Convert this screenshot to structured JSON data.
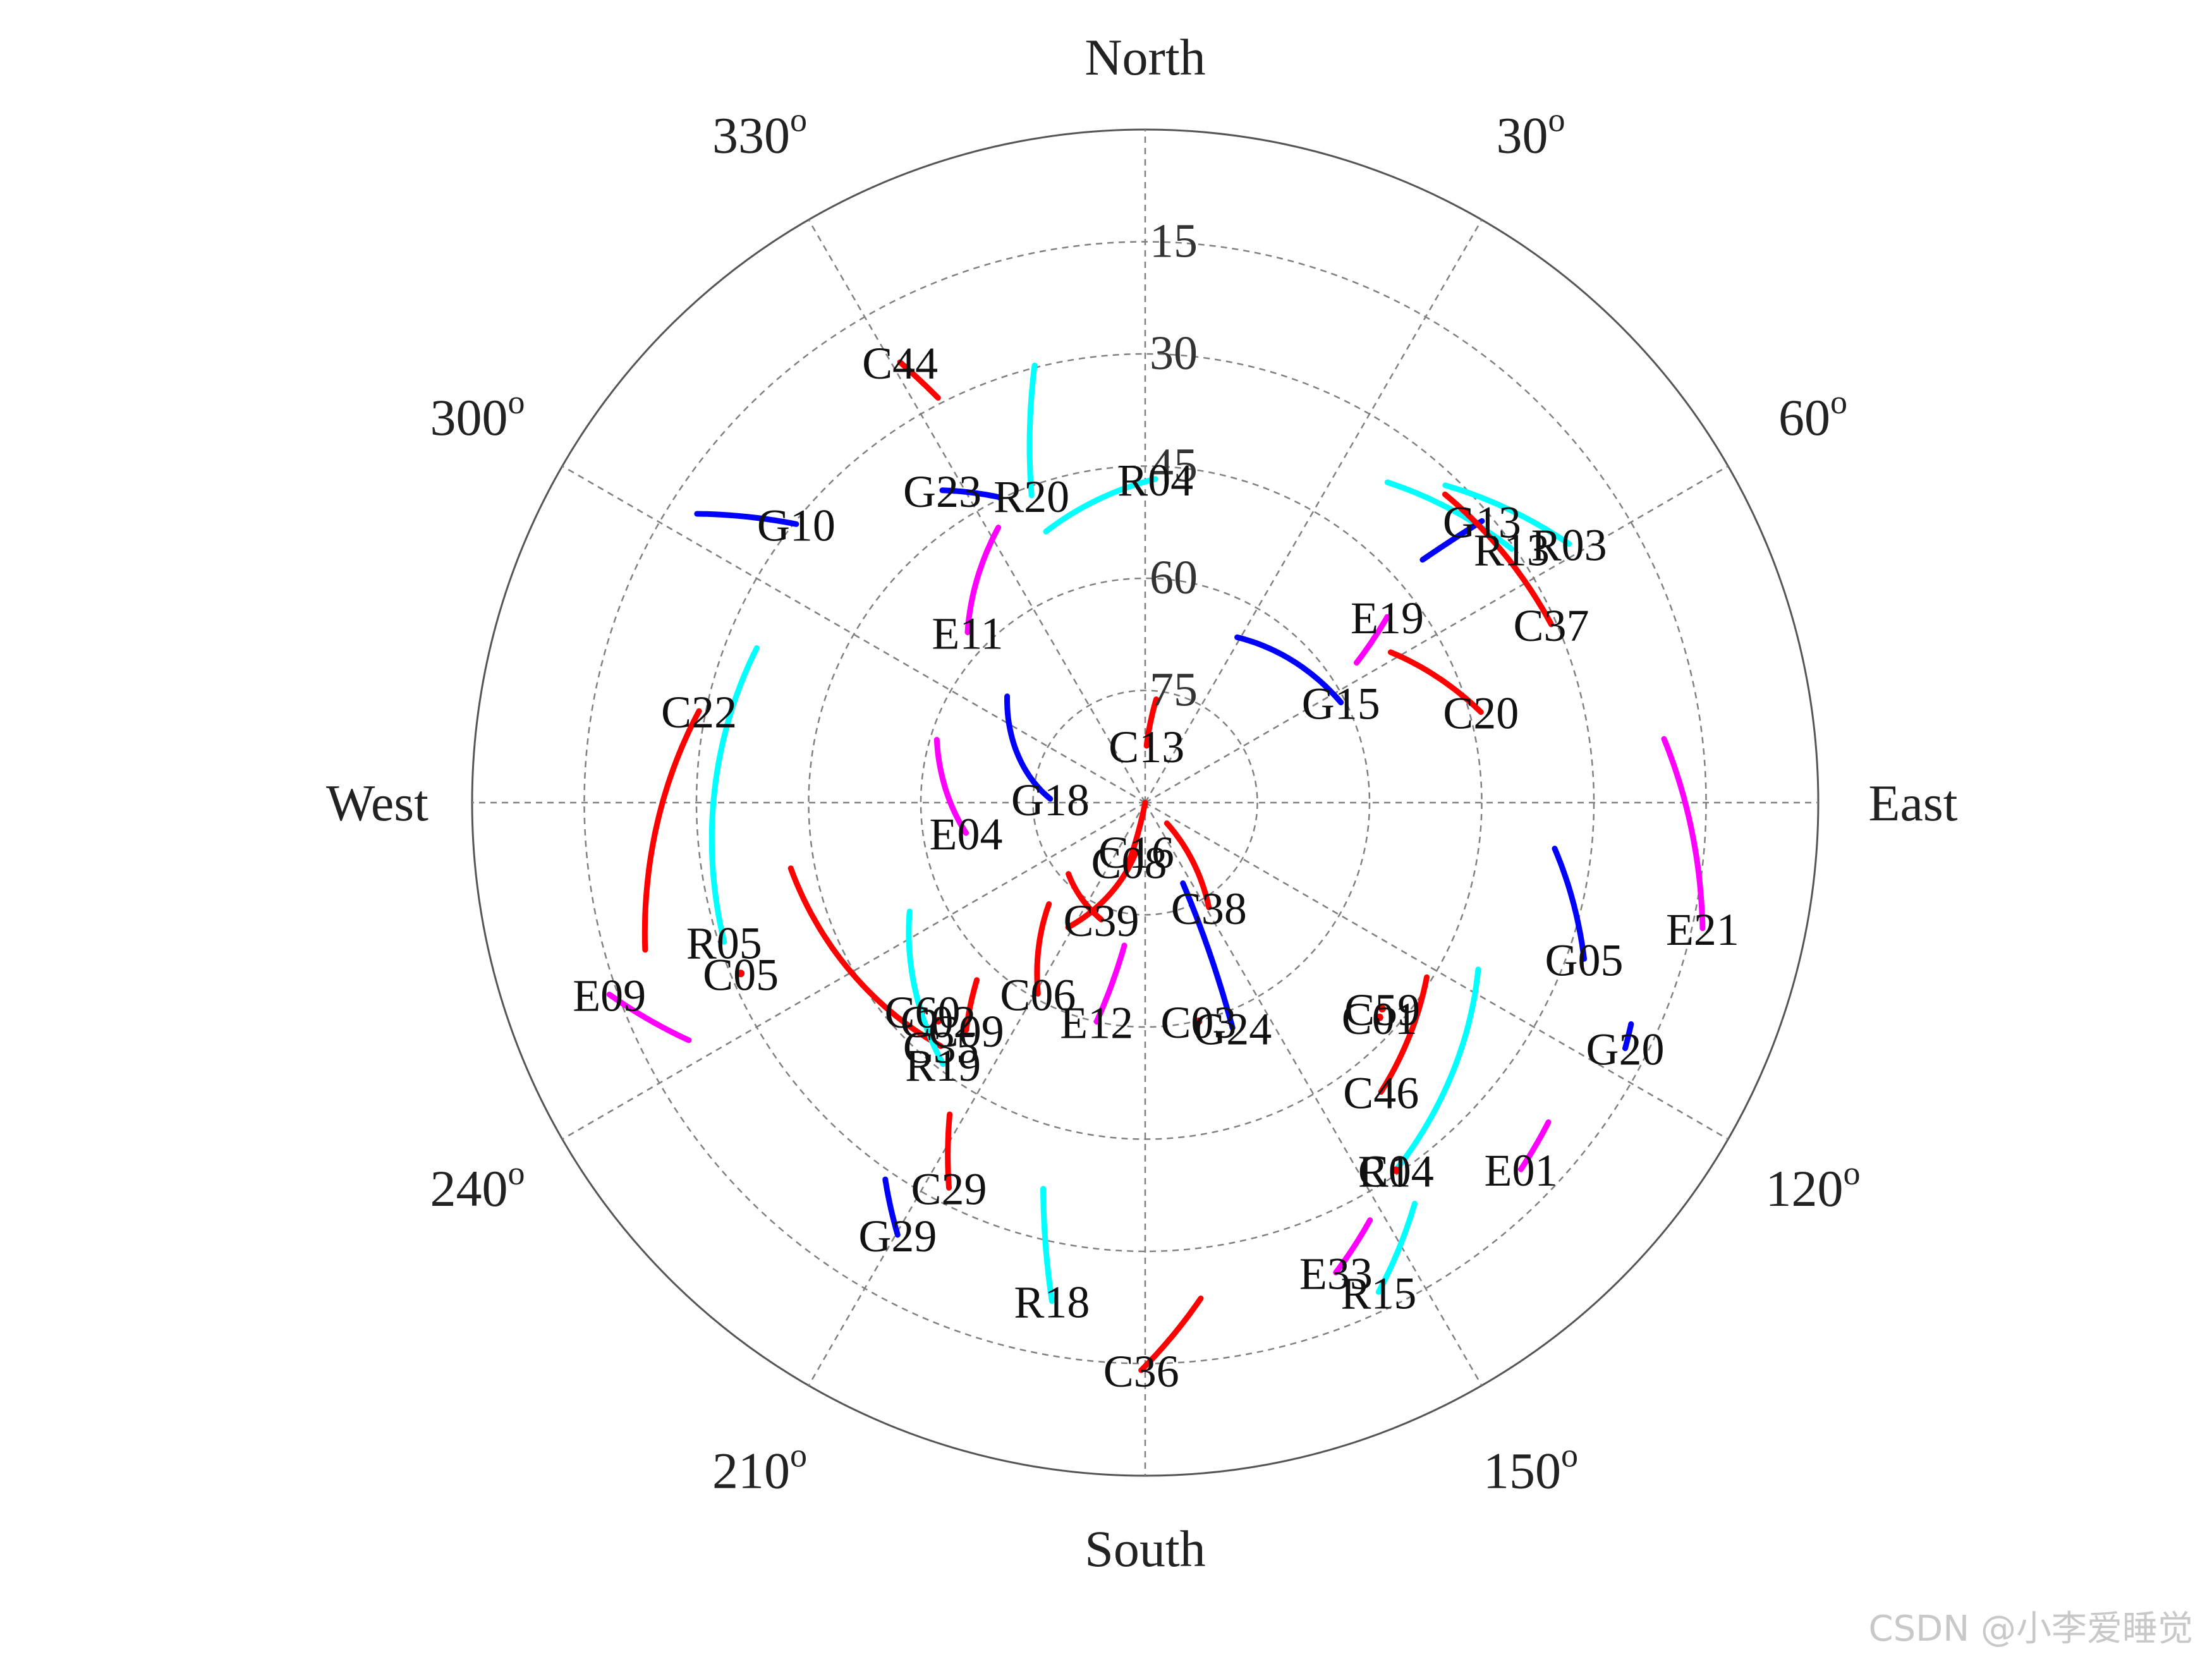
{
  "colors": {
    "BDS": "#ff0000",
    "GPS": "#0000ff",
    "GLONASS": "#00ffff",
    "Galileo": "#ff00ff",
    "grid": "#808080",
    "outline": "#555555"
  },
  "watermark": "CSDN @小李爱睡觉",
  "chart_data": {
    "type": "skyplot",
    "directions": [
      {
        "label": "North",
        "az": 0
      },
      {
        "label": "East",
        "az": 90
      },
      {
        "label": "South",
        "az": 180
      },
      {
        "label": "West",
        "az": 270
      }
    ],
    "azimuth_ticks": [
      {
        "label": "30",
        "az": 30
      },
      {
        "label": "60",
        "az": 60
      },
      {
        "label": "120",
        "az": 120
      },
      {
        "label": "150",
        "az": 150
      },
      {
        "label": "210",
        "az": 210
      },
      {
        "label": "240",
        "az": 240
      },
      {
        "label": "300",
        "az": 300
      },
      {
        "label": "330",
        "az": 330
      }
    ],
    "azimuth_tick_superscript": "o",
    "elevation_ticks": [
      {
        "label": "15",
        "el": 15
      },
      {
        "label": "30",
        "el": 30
      },
      {
        "label": "45",
        "el": 45
      },
      {
        "label": "60",
        "el": 60
      },
      {
        "label": "75",
        "el": 75
      }
    ],
    "elevation_range": [
      0,
      90
    ],
    "grid": true,
    "satellites": [
      {
        "prn": "C44",
        "sys": "BDS",
        "track": [
          [
            332.9,
            29.2
          ],
          [
            330.9,
            22.6
          ]
        ]
      },
      {
        "prn": "G10",
        "sys": "GPS",
        "track": [
          [
            302.8,
            18.7
          ],
          [
            308.6,
            30.3
          ]
        ]
      },
      {
        "prn": "R20",
        "sys": "GLONASS",
        "track": [
          [
            345.8,
            29.7
          ],
          [
            339.7,
            46.2
          ]
        ]
      },
      {
        "prn": "G23",
        "sys": "GPS",
        "track": [
          [
            334.4,
            44.7
          ],
          [
            327.0,
            40.2
          ]
        ]
      },
      {
        "prn": "R04",
        "sys": "GLONASS",
        "track": [
          [
            339.9,
            51.4
          ],
          [
            1.8,
            46.7
          ]
        ]
      },
      {
        "prn": "R05",
        "sys": "GLONASS",
        "track": [
          [
            291.7,
            34.1
          ],
          [
            251.7,
            30.7
          ]
        ]
      },
      {
        "prn": "E11",
        "sys": "Galileo",
        "track": [
          [
            331.9,
            48.3
          ],
          [
            313.8,
            57.1
          ]
        ]
      },
      {
        "prn": "C22",
        "sys": "BDS",
        "track": [
          [
            253.6,
            20.3
          ],
          [
            281.6,
            29.1
          ]
        ]
      },
      {
        "prn": "E04",
        "sys": "Galileo",
        "track": [
          [
            286.8,
            60.9
          ],
          [
            260.4,
            65.7
          ]
        ]
      },
      {
        "prn": "C35",
        "sys": "BDS",
        "track": [
          [
            259.5,
            41.8
          ],
          [
            220.0,
            47.5
          ]
        ]
      },
      {
        "prn": "C13",
        "sys": "BDS",
        "track": [
          [
            6.1,
            76.1
          ],
          [
            1.4,
            82.4
          ]
        ]
      },
      {
        "prn": "C08",
        "sys": "BDS",
        "track": [
          [
            191.2,
            90.0
          ],
          [
            195.2,
            81.8
          ]
        ]
      },
      {
        "prn": "C39",
        "sys": "BDS",
        "track": [
          [
            227.1,
            76.0
          ],
          [
            200.6,
            73.3
          ]
        ]
      },
      {
        "prn": "C16",
        "sys": "BDS",
        "track": [
          [
            211.7,
            70.4
          ],
          [
            190.4,
            83.4
          ]
        ]
      },
      {
        "prn": "G18",
        "sys": "GPS",
        "track": [
          [
            307.6,
            66.7
          ],
          [
            272.3,
            77.3
          ]
        ]
      },
      {
        "prn": "C06",
        "sys": "BDS",
        "track": [
          [
            223.5,
            71.3
          ],
          [
            209.3,
            60.7
          ]
        ]
      },
      {
        "prn": "C09",
        "sys": "BDS",
        "track": [
          [
            223.5,
            57.3
          ],
          [
            218.2,
            51.3
          ]
        ]
      },
      {
        "prn": "C02",
        "sys": "BDS",
        "track": [
          [
            223.5,
            49.8
          ],
          [
            223.5,
            49.8
          ]
        ]
      },
      {
        "prn": "C60",
        "sys": "BDS",
        "track": [
          [
            226.9,
            49.2
          ],
          [
            226.9,
            49.2
          ]
        ]
      },
      {
        "prn": "R19",
        "sys": "GLONASS",
        "track": [
          [
            245.2,
            55.3
          ],
          [
            217.7,
            45.8
          ]
        ]
      },
      {
        "prn": "E12",
        "sys": "Galileo",
        "track": [
          [
            188.3,
            70.7
          ],
          [
            192.5,
            60.0
          ]
        ]
      },
      {
        "prn": "C03",
        "sys": "BDS",
        "track": [
          [
            166.3,
            59.9
          ],
          [
            166.3,
            59.9
          ]
        ]
      },
      {
        "prn": "C38",
        "sys": "BDS",
        "track": [
          [
            133.5,
            86.0
          ],
          [
            148.7,
            73.6
          ]
        ]
      },
      {
        "prn": "G24",
        "sys": "GPS",
        "track": [
          [
            154.9,
            78.1
          ],
          [
            158.8,
            57.7
          ]
        ]
      },
      {
        "prn": "G15",
        "sys": "GPS",
        "track": [
          [
            29.1,
            64.7
          ],
          [
            62.9,
            60.6
          ]
        ]
      },
      {
        "prn": "E19",
        "sys": "Galileo",
        "track": [
          [
            56.5,
            56.1
          ],
          [
            52.5,
            49.2
          ]
        ]
      },
      {
        "prn": "C20",
        "sys": "BDS",
        "track": [
          [
            58.5,
            51.5
          ],
          [
            74.9,
            43.5
          ]
        ]
      },
      {
        "prn": "R13",
        "sys": "GLONASS",
        "track": [
          [
            37.1,
            36.3
          ],
          [
            55.3,
            30.4
          ]
        ]
      },
      {
        "prn": "G13",
        "sys": "GPS",
        "track": [
          [
            48.8,
            40.7
          ],
          [
            50.1,
            31.3
          ]
        ]
      },
      {
        "prn": "C37",
        "sys": "BDS",
        "track": [
          [
            44.2,
            32.5
          ],
          [
            66.3,
            30.7
          ]
        ]
      },
      {
        "prn": "R03",
        "sys": "GLONASS",
        "track": [
          [
            43.4,
            31.6
          ],
          [
            58.6,
            23.6
          ]
        ]
      },
      {
        "prn": "E21",
        "sys": "Galileo",
        "track": [
          [
            83.0,
            20.1
          ],
          [
            102.7,
            13.6
          ]
        ]
      },
      {
        "prn": "G05",
        "sys": "GPS",
        "track": [
          [
            96.4,
            34.9
          ],
          [
            109.6,
            27.7
          ]
        ]
      },
      {
        "prn": "R14",
        "sys": "GLONASS",
        "track": [
          [
            116.6,
            40.2
          ],
          [
            145.7,
            30.5
          ]
        ]
      },
      {
        "prn": "G20",
        "sys": "GPS",
        "track": [
          [
            114.5,
            18.6
          ],
          [
            117.1,
            17.9
          ]
        ]
      },
      {
        "prn": "C46",
        "sys": "BDS",
        "track": [
          [
            121.8,
            45.7
          ],
          [
            140.8,
            40.1
          ]
        ]
      },
      {
        "prn": "C04",
        "sys": "BDS",
        "track": [
          [
            145.7,
            30.5
          ],
          [
            145.7,
            30.5
          ]
        ]
      },
      {
        "prn": "C59",
        "sys": "BDS",
        "track": [
          [
            131.0,
            48.0
          ],
          [
            131.0,
            48.0
          ]
        ]
      },
      {
        "prn": "C01",
        "sys": "BDS",
        "track": [
          [
            132.5,
            47.5
          ],
          [
            132.5,
            47.5
          ]
        ]
      },
      {
        "prn": "E01",
        "sys": "Galileo",
        "track": [
          [
            128.4,
            21.2
          ],
          [
            134.3,
            19.8
          ]
        ]
      },
      {
        "prn": "R15",
        "sys": "GLONASS",
        "track": [
          [
            146.1,
            25.4
          ],
          [
            154.5,
            17.5
          ]
        ]
      },
      {
        "prn": "E33",
        "sys": "Galileo",
        "track": [
          [
            151.7,
            26.6
          ],
          [
            157.9,
            22.2
          ]
        ]
      },
      {
        "prn": "C36",
        "sys": "BDS",
        "track": [
          [
            173.6,
            23.3
          ],
          [
            180.4,
            14.1
          ]
        ]
      },
      {
        "prn": "R18",
        "sys": "GLONASS",
        "track": [
          [
            194.8,
            36.6
          ],
          [
            190.6,
            22.2
          ]
        ]
      },
      {
        "prn": "C29",
        "sys": "BDS",
        "track": [
          [
            212.1,
            40.8
          ],
          [
            207.0,
            32.2
          ]
        ]
      },
      {
        "prn": "G29",
        "sys": "GPS",
        "track": [
          [
            214.6,
            28.8
          ],
          [
            209.8,
            23.4
          ]
        ]
      },
      {
        "prn": "E09",
        "sys": "Galileo",
        "track": [
          [
            242.5,
            21.2
          ],
          [
            250.3,
            13.9
          ]
        ]
      },
      {
        "prn": "C05",
        "sys": "BDS",
        "track": [
          [
            247.1,
            31.3
          ],
          [
            247.1,
            31.3
          ]
        ]
      }
    ]
  }
}
